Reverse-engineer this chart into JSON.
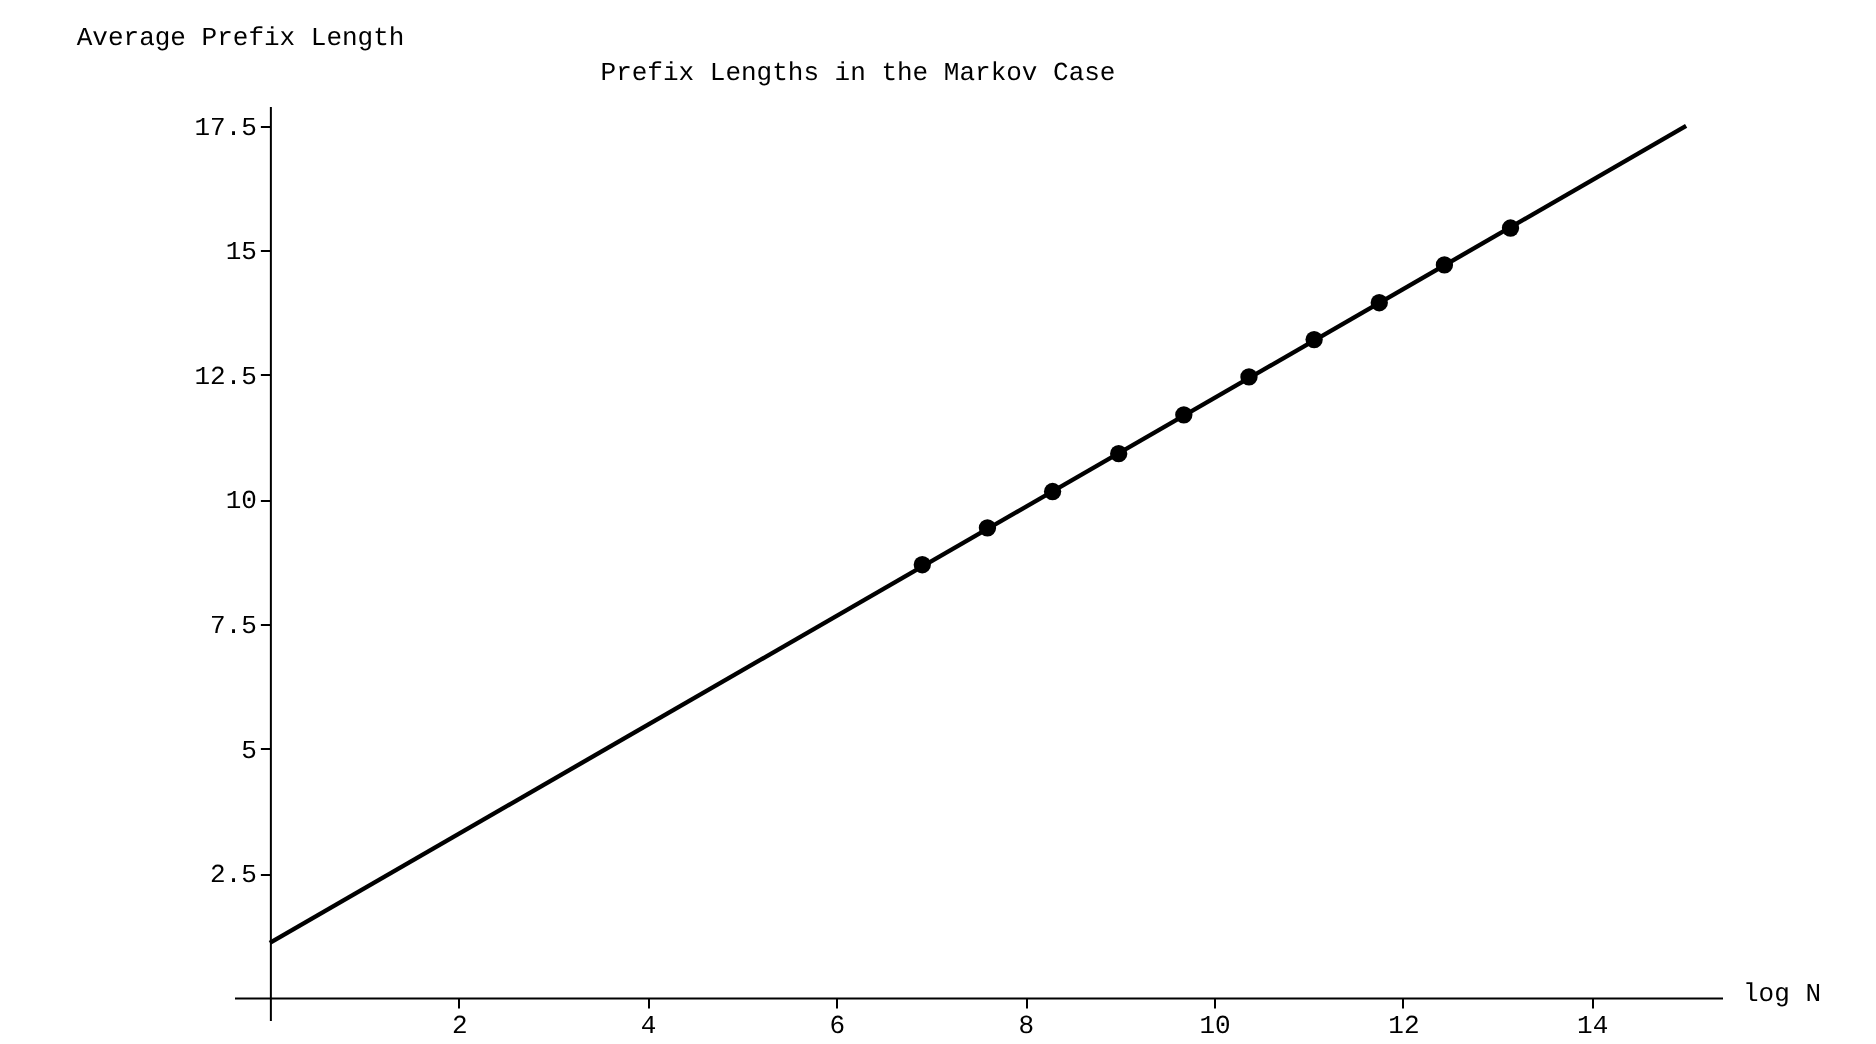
{
  "chart_data": {
    "type": "line",
    "title": "Prefix Lengths in the Markov Case",
    "xlabel": "log N",
    "ylabel": "Average Prefix Length",
    "xlim": [
      -0.38,
      15.38
    ],
    "ylim": [
      -0.45,
      17.9
    ],
    "xticks": [
      2,
      4,
      6,
      8,
      10,
      12,
      14
    ],
    "yticks": [
      2.5,
      5,
      7.5,
      10,
      12.5,
      15,
      17.5
    ],
    "grid": false,
    "series": [
      {
        "color": "#000000",
        "marker": "none",
        "line_style": "solid",
        "x": [
          0,
          15
        ],
        "values": [
          1.1,
          17.5
        ]
      },
      {
        "type": "scatter",
        "color": "#000000",
        "marker": "circle",
        "x": [
          6.91,
          7.6,
          8.29,
          8.99,
          9.68,
          10.37,
          11.06,
          11.75,
          12.44,
          13.14
        ],
        "values": [
          8.69,
          9.43,
          10.16,
          10.92,
          11.7,
          12.46,
          13.21,
          13.95,
          14.71,
          15.45
        ]
      }
    ]
  }
}
